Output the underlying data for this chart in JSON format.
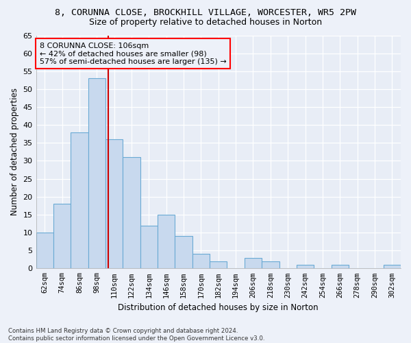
{
  "title_line1": "8, CORUNNA CLOSE, BROCKHILL VILLAGE, WORCESTER, WR5 2PW",
  "title_line2": "Size of property relative to detached houses in Norton",
  "xlabel": "Distribution of detached houses by size in Norton",
  "ylabel": "Number of detached properties",
  "categories": [
    "62sqm",
    "74sqm",
    "86sqm",
    "98sqm",
    "110sqm",
    "122sqm",
    "134sqm",
    "146sqm",
    "158sqm",
    "170sqm",
    "182sqm",
    "194sqm",
    "206sqm",
    "218sqm",
    "230sqm",
    "242sqm",
    "254sqm",
    "266sqm",
    "278sqm",
    "290sqm",
    "302sqm"
  ],
  "values": [
    10,
    18,
    38,
    53,
    36,
    31,
    12,
    15,
    9,
    4,
    2,
    0,
    3,
    2,
    0,
    1,
    0,
    1,
    0,
    0,
    1
  ],
  "bar_color": "#c8d9ee",
  "bar_edge_color": "#6aaad4",
  "vline_color": "#cc0000",
  "ylim": [
    0,
    65
  ],
  "yticks": [
    0,
    5,
    10,
    15,
    20,
    25,
    30,
    35,
    40,
    45,
    50,
    55,
    60,
    65
  ],
  "annotation_box_text": "8 CORUNNA CLOSE: 106sqm\n← 42% of detached houses are smaller (98)\n57% of semi-detached houses are larger (135) →",
  "footnote": "Contains HM Land Registry data © Crown copyright and database right 2024.\nContains public sector information licensed under the Open Government Licence v3.0.",
  "bg_color": "#edf1f9",
  "grid_color": "#d0d8e8",
  "plot_bg_color": "#e8edf6"
}
